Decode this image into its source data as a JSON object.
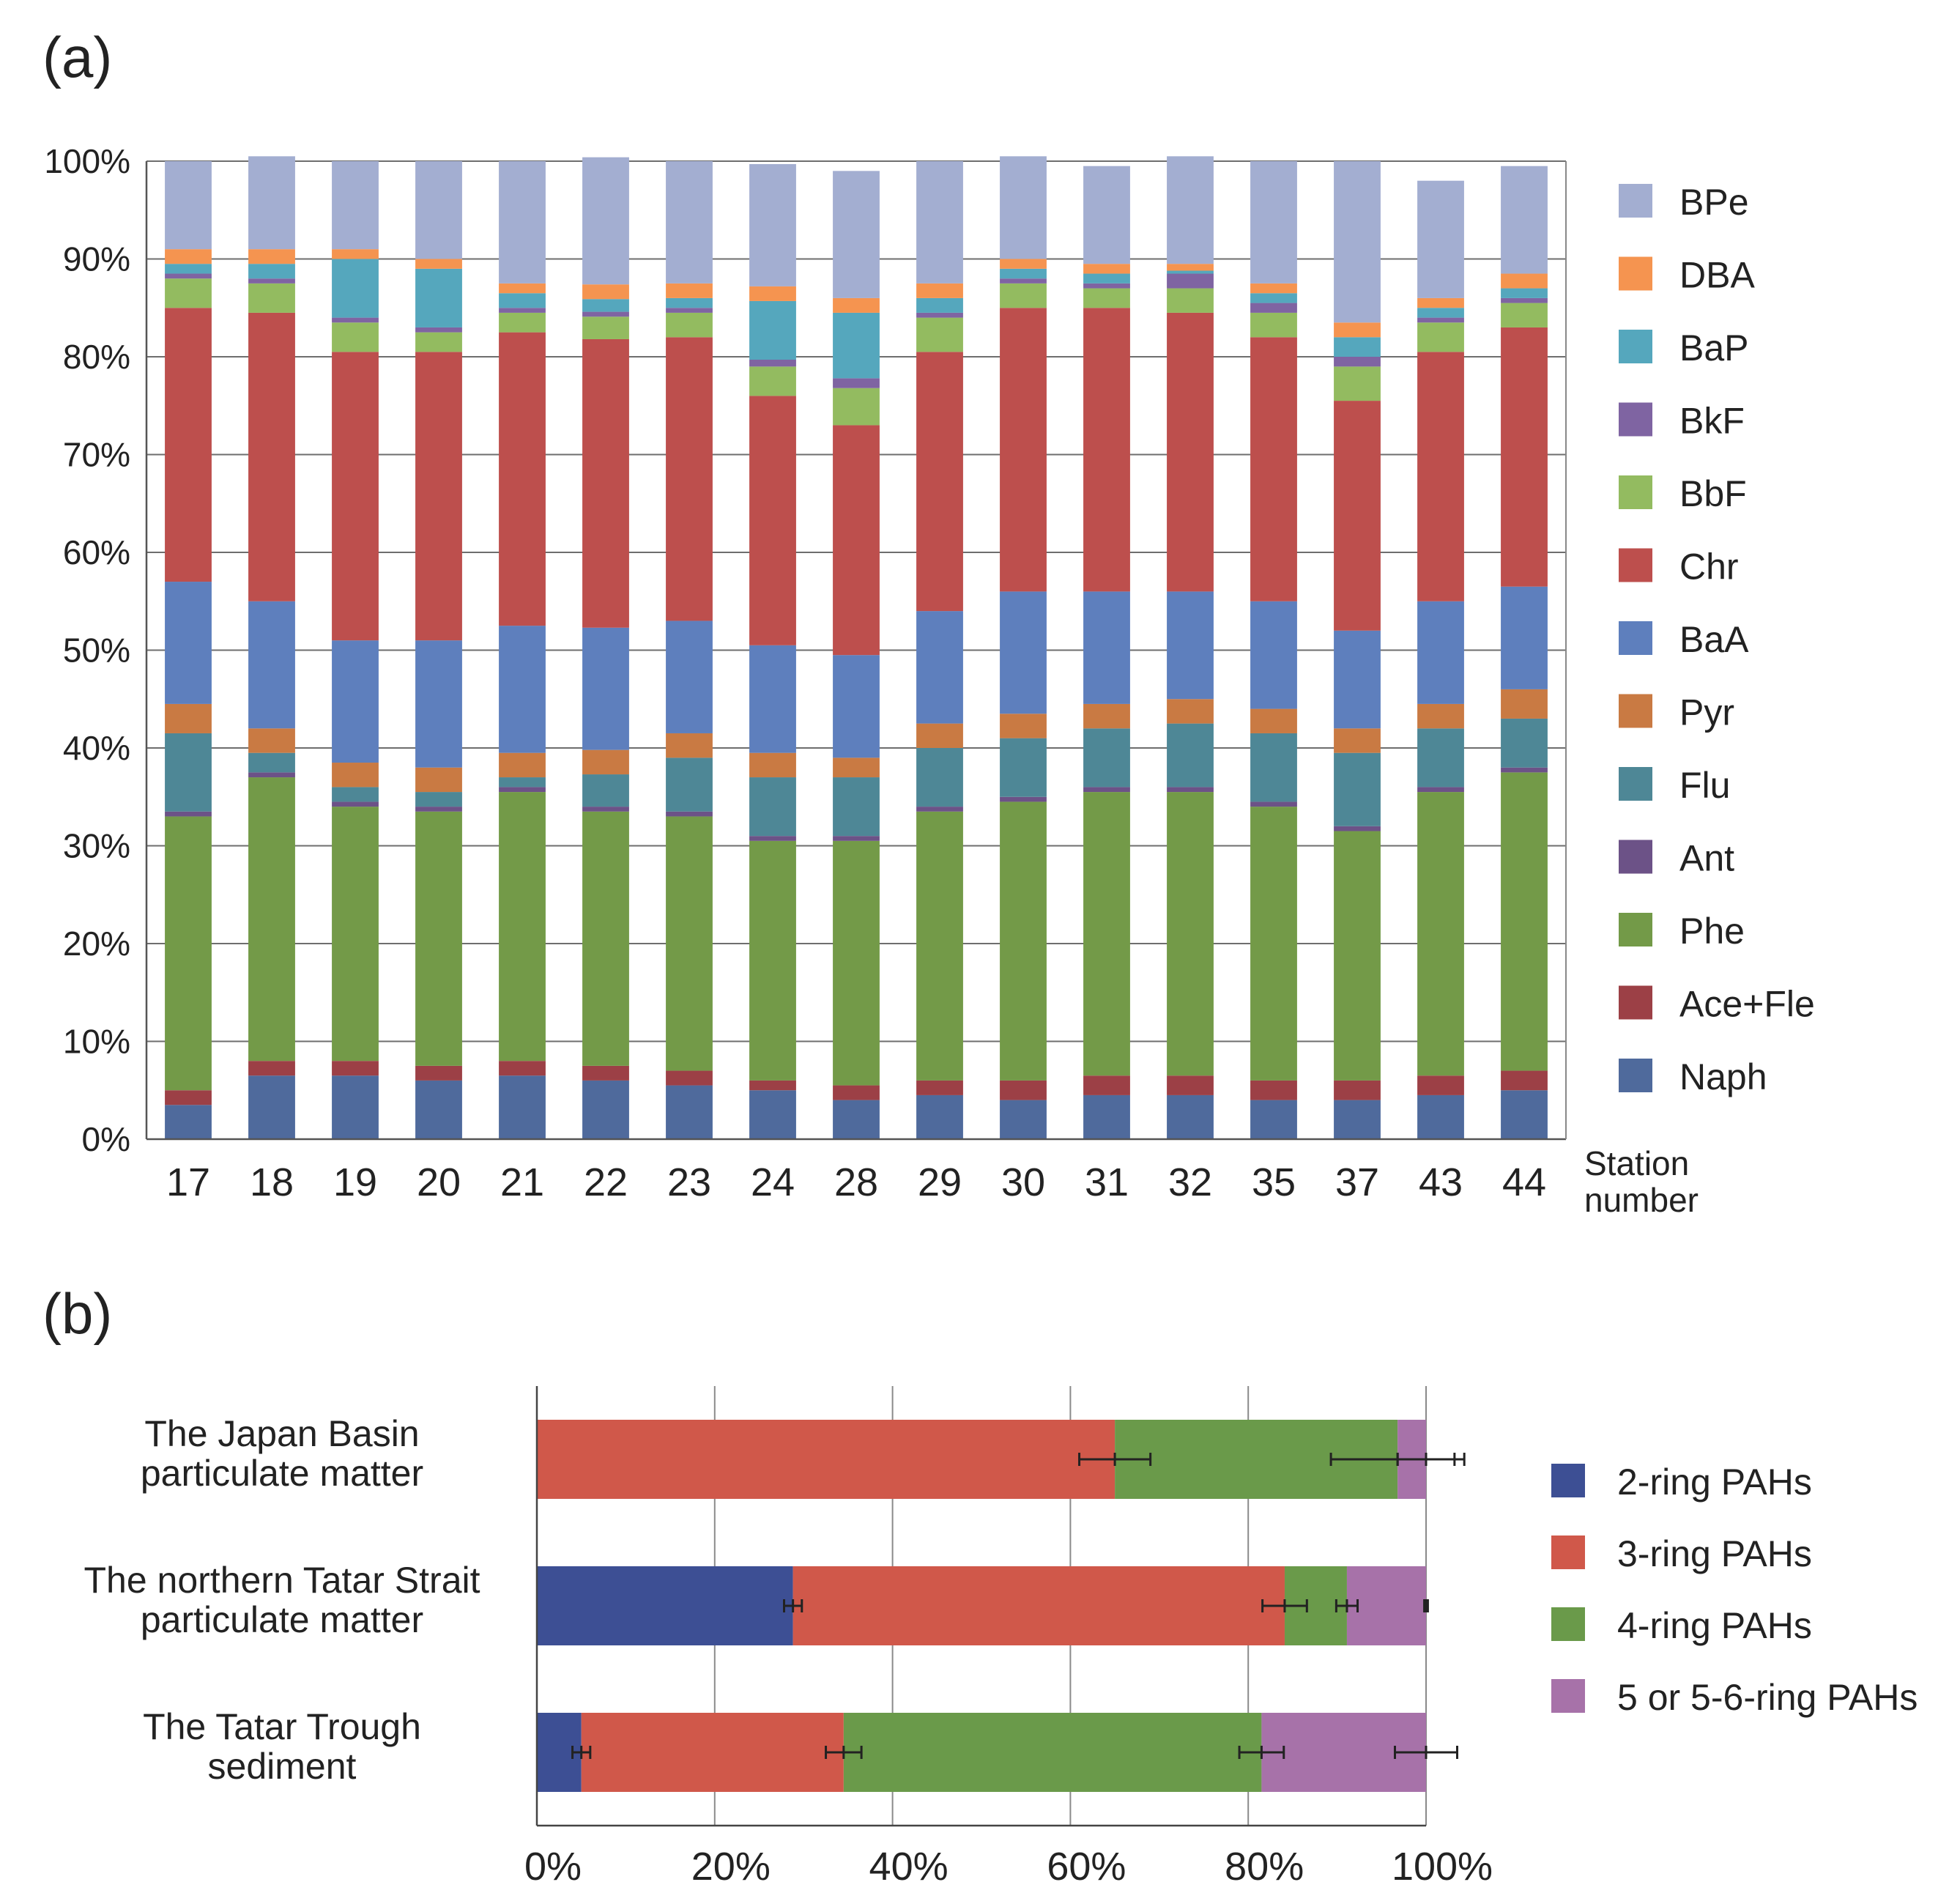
{
  "chart_data": [
    {
      "panel_label": "(a)",
      "type": "bar",
      "stacked": true,
      "orientation": "vertical",
      "percent_scale": true,
      "x_title": [
        "Station",
        "number"
      ],
      "categories": [
        "17",
        "18",
        "19",
        "20",
        "21",
        "22",
        "23",
        "24",
        "28",
        "29",
        "30",
        "31",
        "32",
        "35",
        "37",
        "43",
        "44"
      ],
      "yticks": [
        "0%",
        "10%",
        "20%",
        "30%",
        "40%",
        "50%",
        "60%",
        "70%",
        "80%",
        "90%",
        "100%"
      ],
      "ylim": [
        0,
        100
      ],
      "grid": true,
      "legend_position": "right",
      "series": [
        {
          "name": "Naph",
          "color": "#4f6a9c",
          "values": [
            3.5,
            6.5,
            6.5,
            6,
            6.5,
            6,
            5.5,
            5,
            4,
            4.5,
            4,
            4.5,
            4.5,
            4,
            4,
            4.5,
            5
          ]
        },
        {
          "name": "Ace+Fle",
          "color": "#9c4046",
          "values": [
            1.5,
            1.5,
            1.5,
            1.5,
            1.5,
            1.5,
            1.5,
            1,
            1.5,
            1.5,
            2,
            2,
            2,
            2,
            2,
            2,
            2
          ]
        },
        {
          "name": "Phe",
          "color": "#739a48",
          "values": [
            28,
            29,
            26,
            26,
            27.5,
            26,
            26,
            24.5,
            25,
            27.5,
            28.5,
            29,
            29,
            28,
            25.5,
            29,
            30.5
          ]
        },
        {
          "name": "Ant",
          "color": "#6c5287",
          "values": [
            0.5,
            0.5,
            0.5,
            0.5,
            0.5,
            0.5,
            0.5,
            0.5,
            0.5,
            0.5,
            0.5,
            0.5,
            0.5,
            0.5,
            0.5,
            0.5,
            0.5
          ]
        },
        {
          "name": "Flu",
          "color": "#4e8796",
          "values": [
            8,
            2,
            1.5,
            1.5,
            1,
            3.3,
            5.5,
            6,
            6,
            6,
            6,
            6,
            6.5,
            7,
            7.5,
            6,
            5
          ]
        },
        {
          "name": "Pyr",
          "color": "#c97a43",
          "values": [
            3,
            2.5,
            2.5,
            2.5,
            2.5,
            2.5,
            2.5,
            2.5,
            2,
            2.5,
            2.5,
            2.5,
            2.5,
            2.5,
            2.5,
            2.5,
            3
          ]
        },
        {
          "name": "BaA",
          "color": "#5e7fbd",
          "values": [
            12.5,
            13,
            12.5,
            13,
            13,
            12.5,
            11.5,
            11,
            10.5,
            11.5,
            12.5,
            11.5,
            11,
            11,
            10,
            10.5,
            10.5
          ]
        },
        {
          "name": "Chr",
          "color": "#bd4f4d",
          "values": [
            28,
            29.5,
            29.5,
            29.5,
            30,
            29.5,
            29,
            25.5,
            23.5,
            26.5,
            29,
            29,
            28.5,
            27,
            23.5,
            25.5,
            26.5
          ]
        },
        {
          "name": "BbF",
          "color": "#93bb60",
          "values": [
            3,
            3,
            3,
            2,
            2,
            2.3,
            2.5,
            3,
            3.8,
            3.5,
            2.5,
            2,
            2.5,
            2.5,
            3.5,
            3,
            2.5
          ]
        },
        {
          "name": "BkF",
          "color": "#7f64a2",
          "values": [
            0.5,
            0.5,
            0.5,
            0.5,
            0.5,
            0.5,
            0.5,
            0.7,
            1,
            0.5,
            0.5,
            0.5,
            1.5,
            1,
            1,
            0.5,
            0.5
          ]
        },
        {
          "name": "BaP",
          "color": "#55a7bd",
          "values": [
            1,
            1.5,
            6,
            6,
            1.5,
            1.3,
            1,
            6,
            6.7,
            1.5,
            1,
            1,
            0.3,
            1,
            2,
            1,
            1
          ]
        },
        {
          "name": "DBA",
          "color": "#f59450",
          "values": [
            1.5,
            1.5,
            1,
            1,
            1,
            1.5,
            1.5,
            1.5,
            1.5,
            1.5,
            1,
            1,
            0.7,
            1,
            1.5,
            1,
            1.5
          ]
        },
        {
          "name": "BPe",
          "color": "#a3aed1",
          "values": [
            9,
            9.5,
            9,
            10,
            12.5,
            13,
            12.5,
            12.5,
            13,
            12.5,
            10.5,
            10,
            11,
            12.5,
            16.5,
            12,
            11
          ]
        }
      ]
    },
    {
      "panel_label": "(b)",
      "type": "bar",
      "stacked": true,
      "orientation": "horizontal",
      "percent_scale": true,
      "categories": [
        [
          "The Japan Basin",
          "particulate matter"
        ],
        [
          "The northern Tatar Strait",
          "particulate matter"
        ],
        [
          "The Tatar Trough",
          "sediment"
        ]
      ],
      "xticks": [
        "0%",
        "20%",
        "40%",
        "60%",
        "80%",
        "100%"
      ],
      "xlim": [
        0,
        100
      ],
      "grid": true,
      "legend_position": "right",
      "series": [
        {
          "name": "2-ring PAHs",
          "color": "#3d4f94",
          "values": [
            0,
            28.8,
            5
          ],
          "errors": [
            0,
            1,
            1
          ]
        },
        {
          "name": "3-ring PAHs",
          "color": "#d0584a",
          "values": [
            65,
            55.3,
            29.5
          ],
          "errors": [
            4,
            2.5,
            2
          ]
        },
        {
          "name": "4-ring PAHs",
          "color": "#6a9a4a",
          "values": [
            31.8,
            7,
            47
          ],
          "errors": [
            7.5,
            1.2,
            2.5
          ]
        },
        {
          "name": "5 or 5-6-ring PAHs",
          "color": "#a772a9",
          "values": [
            3.2,
            8.9,
            18.5
          ],
          "errors": [
            3.2,
            0.2,
            3.5
          ]
        }
      ]
    }
  ]
}
